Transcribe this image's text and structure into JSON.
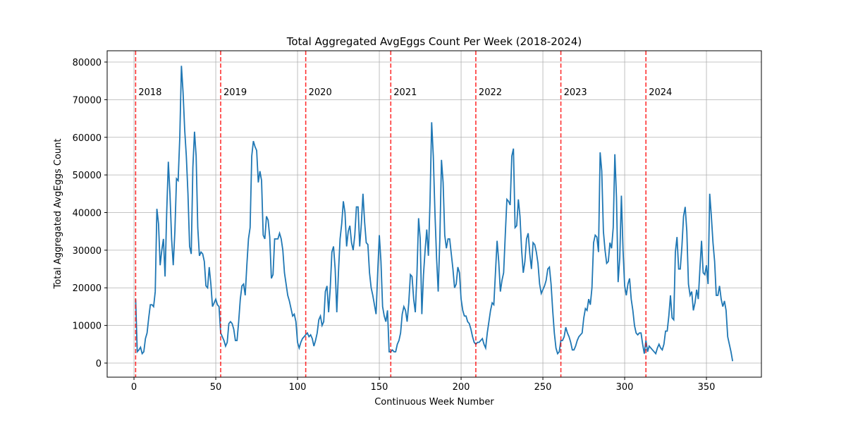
{
  "chart_data": {
    "type": "line",
    "title": "Total Aggregated AvgEggs Count Per Week (2018-2024)",
    "x_label": "Continuous Week Number",
    "y_label": "Total Aggregated AvgEggs Count",
    "color": "#1f77b4",
    "grid": true,
    "xlim": [
      -16.4,
      383.6
    ],
    "ylim": [
      -3750,
      83000
    ],
    "xticks": [
      0,
      50,
      100,
      150,
      200,
      250,
      300,
      350
    ],
    "yticks": [
      0,
      10000,
      20000,
      30000,
      40000,
      50000,
      60000,
      70000,
      80000
    ],
    "annotations": [
      {
        "x": 1,
        "label": "2018"
      },
      {
        "x": 53,
        "label": "2019"
      },
      {
        "x": 105,
        "label": "2020"
      },
      {
        "x": 157,
        "label": "2021"
      },
      {
        "x": 209,
        "label": "2022"
      },
      {
        "x": 261,
        "label": "2023"
      },
      {
        "x": 313,
        "label": "2024"
      }
    ],
    "annotation_color": "#ff0000",
    "x": [
      1,
      2,
      3,
      4,
      5,
      6,
      7,
      8,
      9,
      10,
      11,
      12,
      13,
      14,
      15,
      16,
      17,
      18,
      19,
      20,
      21,
      22,
      23,
      24,
      25,
      26,
      27,
      28,
      29,
      30,
      31,
      32,
      33,
      34,
      35,
      36,
      37,
      38,
      39,
      40,
      41,
      42,
      43,
      44,
      45,
      46,
      47,
      48,
      49,
      50,
      51,
      52,
      53,
      54,
      55,
      56,
      57,
      58,
      59,
      60,
      61,
      62,
      63,
      64,
      65,
      66,
      67,
      68,
      69,
      70,
      71,
      72,
      73,
      74,
      75,
      76,
      77,
      78,
      79,
      80,
      81,
      82,
      83,
      84,
      85,
      86,
      87,
      88,
      89,
      90,
      91,
      92,
      93,
      94,
      95,
      96,
      97,
      98,
      99,
      100,
      101,
      102,
      103,
      104,
      105,
      106,
      107,
      108,
      109,
      110,
      111,
      112,
      113,
      114,
      115,
      116,
      117,
      118,
      119,
      120,
      121,
      122,
      123,
      124,
      125,
      126,
      127,
      128,
      129,
      130,
      131,
      132,
      133,
      134,
      135,
      136,
      137,
      138,
      139,
      140,
      141,
      142,
      143,
      144,
      145,
      146,
      147,
      148,
      149,
      150,
      151,
      152,
      153,
      154,
      155,
      156,
      157,
      158,
      159,
      160,
      161,
      162,
      163,
      164,
      165,
      166,
      167,
      168,
      169,
      170,
      171,
      172,
      173,
      174,
      175,
      176,
      177,
      178,
      179,
      180,
      181,
      182,
      183,
      184,
      185,
      186,
      187,
      188,
      189,
      190,
      191,
      192,
      193,
      194,
      195,
      196,
      197,
      198,
      199,
      200,
      201,
      202,
      203,
      204,
      205,
      206,
      207,
      208,
      209,
      210,
      211,
      212,
      213,
      214,
      215,
      216,
      217,
      218,
      219,
      220,
      221,
      222,
      223,
      224,
      225,
      226,
      227,
      228,
      229,
      230,
      231,
      232,
      233,
      234,
      235,
      236,
      237,
      238,
      239,
      240,
      241,
      242,
      243,
      244,
      245,
      246,
      247,
      248,
      249,
      250,
      251,
      252,
      253,
      254,
      255,
      256,
      257,
      258,
      259,
      260,
      261,
      262,
      263,
      264,
      265,
      266,
      267,
      268,
      269,
      270,
      271,
      272,
      273,
      274,
      275,
      276,
      277,
      278,
      279,
      280,
      281,
      282,
      283,
      284,
      285,
      286,
      287,
      288,
      289,
      290,
      291,
      292,
      293,
      294,
      295,
      296,
      297,
      298,
      299,
      300,
      301,
      302,
      303,
      304,
      305,
      306,
      307,
      308,
      309,
      310,
      311,
      312,
      313,
      314,
      315,
      316,
      317,
      318,
      319,
      320,
      321,
      322,
      323,
      324,
      325,
      326,
      327,
      328,
      329,
      330,
      331,
      332,
      333,
      334,
      335,
      336,
      337,
      338,
      339,
      340,
      341,
      342,
      343,
      344,
      345,
      346,
      347,
      348,
      349,
      350,
      351,
      352,
      353,
      354,
      355,
      356,
      357,
      358,
      359,
      360,
      361,
      362,
      363,
      364,
      365,
      366
    ],
    "values": [
      17000,
      3000,
      3500,
      4200,
      2500,
      3000,
      6500,
      8000,
      12000,
      15500,
      15500,
      15000,
      19000,
      41000,
      37000,
      26000,
      30000,
      33000,
      23000,
      40000,
      53500,
      45000,
      33000,
      26000,
      35000,
      49000,
      48500,
      60000,
      79000,
      72000,
      62000,
      55000,
      45000,
      31000,
      29000,
      52000,
      61500,
      55000,
      36000,
      28500,
      29500,
      29000,
      27000,
      20500,
      20000,
      25500,
      21000,
      15000,
      16000,
      17000,
      15500,
      15000,
      8000,
      7000,
      6000,
      4500,
      5500,
      10500,
      11000,
      10500,
      9000,
      6000,
      6000,
      11000,
      17000,
      20500,
      21000,
      18000,
      26000,
      33000,
      36000,
      55000,
      59000,
      57500,
      56500,
      48000,
      51000,
      48500,
      34000,
      33000,
      39000,
      38000,
      33500,
      22500,
      23500,
      33000,
      33000,
      33000,
      34500,
      33000,
      30000,
      24000,
      21000,
      18000,
      16500,
      14500,
      12500,
      13000,
      11000,
      5500,
      4000,
      5500,
      6500,
      7000,
      7500,
      8000,
      7000,
      7500,
      6500,
      4500,
      6000,
      8000,
      11500,
      12500,
      10000,
      11000,
      19000,
      20500,
      13500,
      20000,
      29500,
      31000,
      25000,
      13500,
      24000,
      33000,
      37000,
      43000,
      40000,
      31000,
      35000,
      36500,
      32000,
      30000,
      34000,
      41500,
      41500,
      31000,
      37000,
      45000,
      37500,
      32000,
      31500,
      24000,
      20000,
      18000,
      15500,
      13000,
      24000,
      34000,
      27000,
      15000,
      12500,
      11000,
      14000,
      3000,
      3000,
      3500,
      3000,
      3000,
      5000,
      6000,
      8000,
      13000,
      15000,
      14000,
      11000,
      16000,
      23500,
      23000,
      17000,
      13500,
      23500,
      38500,
      33000,
      13000,
      23500,
      30000,
      35500,
      28500,
      43000,
      64000,
      55000,
      40000,
      28000,
      19000,
      33000,
      54000,
      48000,
      34000,
      30500,
      33000,
      33000,
      29000,
      25000,
      20000,
      21000,
      25500,
      24000,
      17000,
      14000,
      12500,
      12500,
      11000,
      10500,
      9000,
      7000,
      5500,
      5000,
      5500,
      5500,
      6000,
      6500,
      5000,
      4000,
      8000,
      11000,
      14000,
      16000,
      15500,
      24000,
      32500,
      27000,
      19000,
      22000,
      24000,
      34000,
      43500,
      43000,
      42000,
      55000,
      57000,
      36000,
      36500,
      43500,
      39000,
      30000,
      24000,
      27000,
      33000,
      34500,
      29000,
      25000,
      32000,
      31500,
      29500,
      26500,
      21000,
      18500,
      19500,
      20500,
      22000,
      25000,
      25500,
      21000,
      14000,
      8000,
      4000,
      2500,
      3000,
      6000,
      6000,
      7000,
      9500,
      8000,
      7000,
      5500,
      3500,
      3500,
      4500,
      6000,
      7000,
      7500,
      8000,
      12000,
      14500,
      14000,
      17000,
      15500,
      20000,
      32000,
      34000,
      33500,
      29500,
      56000,
      51000,
      35000,
      30000,
      26500,
      27000,
      32000,
      30500,
      36000,
      55500,
      44000,
      21500,
      28000,
      44500,
      30000,
      20500,
      18000,
      21000,
      22500,
      17000,
      14000,
      10000,
      8000,
      7500,
      8000,
      8000,
      5000,
      2500,
      6000,
      3000,
      4500,
      4000,
      3500,
      3000,
      2500,
      4000,
      5000,
      4000,
      3500,
      5000,
      8500,
      8500,
      12500,
      18000,
      12000,
      11500,
      29500,
      33500,
      25000,
      25000,
      31000,
      39000,
      41500,
      35000,
      21000,
      18000,
      19000,
      14000,
      16000,
      19500,
      17000,
      25000,
      32500,
      24000,
      23500,
      26000,
      21000,
      45000,
      39000,
      32000,
      27000,
      18000,
      18000,
      20500,
      17000,
      15000,
      16500,
      14000,
      7000,
      5000,
      3000,
      500
    ]
  }
}
